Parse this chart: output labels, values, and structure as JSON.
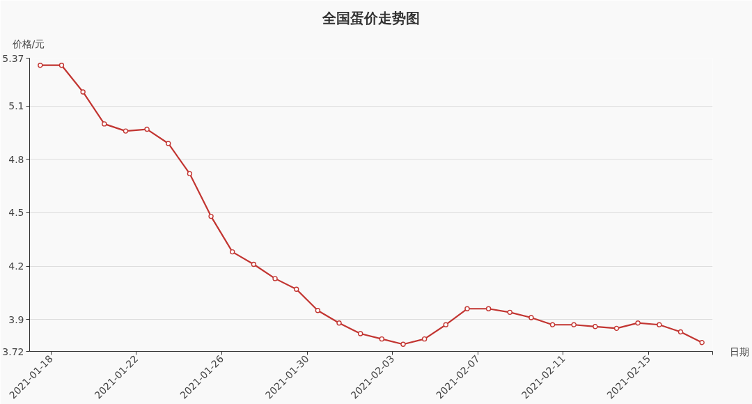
{
  "chart_data": {
    "type": "line",
    "title": "全国蛋价走势图",
    "xlabel": "日期",
    "ylabel": "价格/元",
    "x": [
      "2021-01-17T12:00",
      "2021-01-18T12:00",
      "2021-01-19T12:00",
      "2021-01-20T12:00",
      "2021-01-21T12:00",
      "2021-01-22T12:00",
      "2021-01-23T12:00",
      "2021-01-24T12:00",
      "2021-01-25T12:00",
      "2021-01-26T12:00",
      "2021-01-27T12:00",
      "2021-01-28T12:00",
      "2021-01-29T12:00",
      "2021-01-30T12:00",
      "2021-01-31T12:00",
      "2021-02-01T12:00",
      "2021-02-02T12:00",
      "2021-02-03T12:00",
      "2021-02-04T12:00",
      "2021-02-05T12:00",
      "2021-02-06T12:00",
      "2021-02-07T12:00",
      "2021-02-08T12:00",
      "2021-02-09T12:00",
      "2021-02-10T12:00",
      "2021-02-11T12:00",
      "2021-02-12T12:00",
      "2021-02-13T12:00",
      "2021-02-14T12:00",
      "2021-02-15T12:00",
      "2021-02-16T12:00",
      "2021-02-17T12:00"
    ],
    "series": [
      {
        "color": "#c23531",
        "values": [
          5.33,
          5.33,
          5.18,
          5.0,
          4.96,
          4.97,
          4.89,
          4.72,
          4.48,
          4.28,
          4.21,
          4.13,
          4.07,
          3.95,
          3.88,
          3.82,
          3.79,
          3.76,
          3.79,
          3.87,
          3.96,
          3.96,
          3.94,
          3.91,
          3.87,
          3.87,
          3.86,
          3.85,
          3.88,
          3.87,
          3.83,
          3.77
        ]
      }
    ],
    "xlim": [
      "2021-01-17",
      "2021-02-18"
    ],
    "xticks": [
      "2021-01-18",
      "2021-01-22",
      "2021-01-26",
      "2021-01-30",
      "2021-02-03",
      "2021-02-07",
      "2021-02-11",
      "2021-02-15",
      {
        "value": "2021-02-18",
        "label": null
      }
    ],
    "ylim": [
      3.72,
      5.37
    ],
    "yticks": [
      3.72,
      3.9,
      4.2,
      4.5,
      4.8,
      5.1,
      5.37
    ],
    "grid": "y",
    "marker": "circle",
    "line_style": "solid"
  }
}
